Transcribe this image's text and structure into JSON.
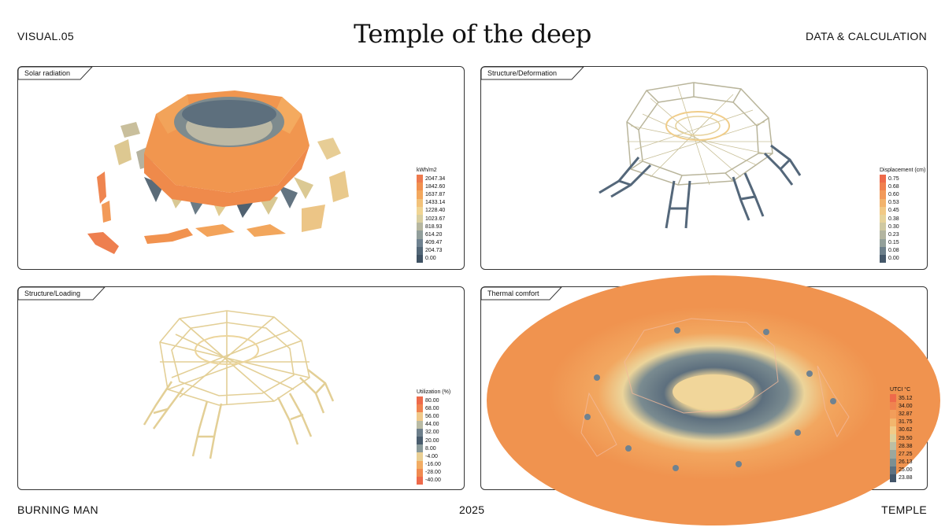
{
  "header": {
    "left": "VISUAL.05",
    "title": "Temple of the deep",
    "right": "DATA & CALCULATION"
  },
  "footer": {
    "left": "BURNING MAN",
    "center": "2025",
    "right": "TEMPLE"
  },
  "panels": {
    "solar": {
      "label": "Solar radiation",
      "legend_title": "kWh/m2",
      "legend": [
        {
          "v": "2047.34",
          "c": "#ee7a4e"
        },
        {
          "v": "1842.60",
          "c": "#f1904f"
        },
        {
          "v": "1637.87",
          "c": "#f3a85d"
        },
        {
          "v": "1433.14",
          "c": "#f2c27a"
        },
        {
          "v": "1228.40",
          "c": "#f0d594"
        },
        {
          "v": "1023.67",
          "c": "#d9cfa0"
        },
        {
          "v": "818.93",
          "c": "#b6b7a0"
        },
        {
          "v": "614.20",
          "c": "#919e9b"
        },
        {
          "v": "409.47",
          "c": "#6f8290"
        },
        {
          "v": "204.73",
          "c": "#536777"
        },
        {
          "v": "0.00",
          "c": "#3f5263"
        }
      ]
    },
    "deformation": {
      "label": "Structure/Deformation",
      "legend_title": "Displacement (cm)",
      "legend": [
        {
          "v": "0.75",
          "c": "#ee6a4a"
        },
        {
          "v": "0.68",
          "c": "#f0804f"
        },
        {
          "v": "0.60",
          "c": "#f29a5a"
        },
        {
          "v": "0.53",
          "c": "#f2b36c"
        },
        {
          "v": "0.45",
          "c": "#f1c985"
        },
        {
          "v": "0.38",
          "c": "#e6d39a"
        },
        {
          "v": "0.30",
          "c": "#cfc9a2"
        },
        {
          "v": "0.23",
          "c": "#b3b5a0"
        },
        {
          "v": "0.15",
          "c": "#93a09a"
        },
        {
          "v": "0.08",
          "c": "#6c7f8a"
        },
        {
          "v": "0.00",
          "c": "#45586a"
        }
      ]
    },
    "loading": {
      "label": "Structure/Loading",
      "legend_title": "Utilization (%)",
      "legend": [
        {
          "v": "80.00",
          "c": "#ee6a4a"
        },
        {
          "v": "68.00",
          "c": "#f0834f"
        },
        {
          "v": "56.00",
          "c": "#f0c98a"
        },
        {
          "v": "44.00",
          "c": "#b9bba4"
        },
        {
          "v": "32.00",
          "c": "#6d7f8b"
        },
        {
          "v": "20.00",
          "c": "#4a5d6e"
        },
        {
          "v": "8.00",
          "c": "#8a9a9a"
        },
        {
          "v": "-4.00",
          "c": "#e9cf94"
        },
        {
          "v": "-16.00",
          "c": "#f2ac63"
        },
        {
          "v": "-28.00",
          "c": "#f08a50"
        },
        {
          "v": "-40.00",
          "c": "#ee6a4a"
        }
      ]
    },
    "thermal": {
      "label": "Thermal comfort",
      "legend_title": "UTCI °C",
      "legend": [
        {
          "v": "35.12",
          "c": "#ee6a4a"
        },
        {
          "v": "34.00",
          "c": "#f0834f"
        },
        {
          "v": "32.87",
          "c": "#f29d5a"
        },
        {
          "v": "31.75",
          "c": "#f2b66d"
        },
        {
          "v": "30.62",
          "c": "#f1cb88"
        },
        {
          "v": "29.50",
          "c": "#dcd09d"
        },
        {
          "v": "28.38",
          "c": "#bcbea3"
        },
        {
          "v": "27.25",
          "c": "#9ba79e"
        },
        {
          "v": "26.13",
          "c": "#7b8f93"
        },
        {
          "v": "25.00",
          "c": "#5c7181"
        },
        {
          "v": "23.88",
          "c": "#43566a"
        }
      ]
    }
  },
  "colors": {
    "orange": "#f0934f",
    "sand": "#ead49a",
    "slate": "#4d6070",
    "beam": "#e6d19a"
  }
}
